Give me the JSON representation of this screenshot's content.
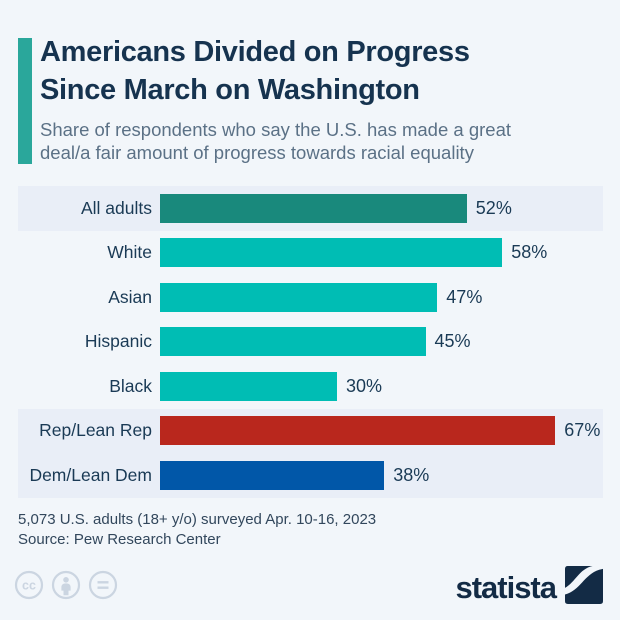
{
  "colors": {
    "background": "#f2f6fa",
    "highlight_band": "#e9eef7",
    "accent": "#2aa79b",
    "title_text": "#16334f",
    "subtitle_text": "#5b7186",
    "chart_text": "#1a3a55",
    "footer_text": "#32475c",
    "license_icon": "#cbd5e1",
    "logo": "#132b45"
  },
  "header": {
    "title_lines": [
      "Americans Divided on Progress",
      "Since March on Washington"
    ],
    "subtitle_lines": [
      "Share of respondents who say the U.S. has made a great",
      "deal/a fair amount of progress towards racial equality"
    ]
  },
  "chart_data": {
    "type": "bar",
    "orientation": "horizontal",
    "title": "Americans Divided on Progress Since March on Washington",
    "categories": [
      "All adults",
      "White",
      "Asian",
      "Hispanic",
      "Black",
      "Rep/Lean Rep",
      "Dem/Lean Dem"
    ],
    "values": [
      52,
      58,
      47,
      45,
      30,
      67,
      38
    ],
    "value_labels": [
      "52%",
      "58%",
      "47%",
      "45%",
      "30%",
      "67%",
      "38%"
    ],
    "bar_colors": [
      "#19897c",
      "#00bdb4",
      "#00bdb4",
      "#00bdb4",
      "#00bdb4",
      "#b9271d",
      "#0157a8"
    ],
    "highlighted_rows": [
      0,
      5,
      6
    ],
    "unit": "%",
    "xlim": [
      0,
      75
    ],
    "grid": false,
    "legend": false
  },
  "footer": {
    "note": "5,073 U.S. adults (18+ y/o) surveyed Apr. 10-16, 2023",
    "source": "Source: Pew Research Center"
  },
  "branding": {
    "logo_text": "statista"
  },
  "license_icons": [
    "cc-icon",
    "attribution-icon",
    "no-derivatives-icon"
  ]
}
